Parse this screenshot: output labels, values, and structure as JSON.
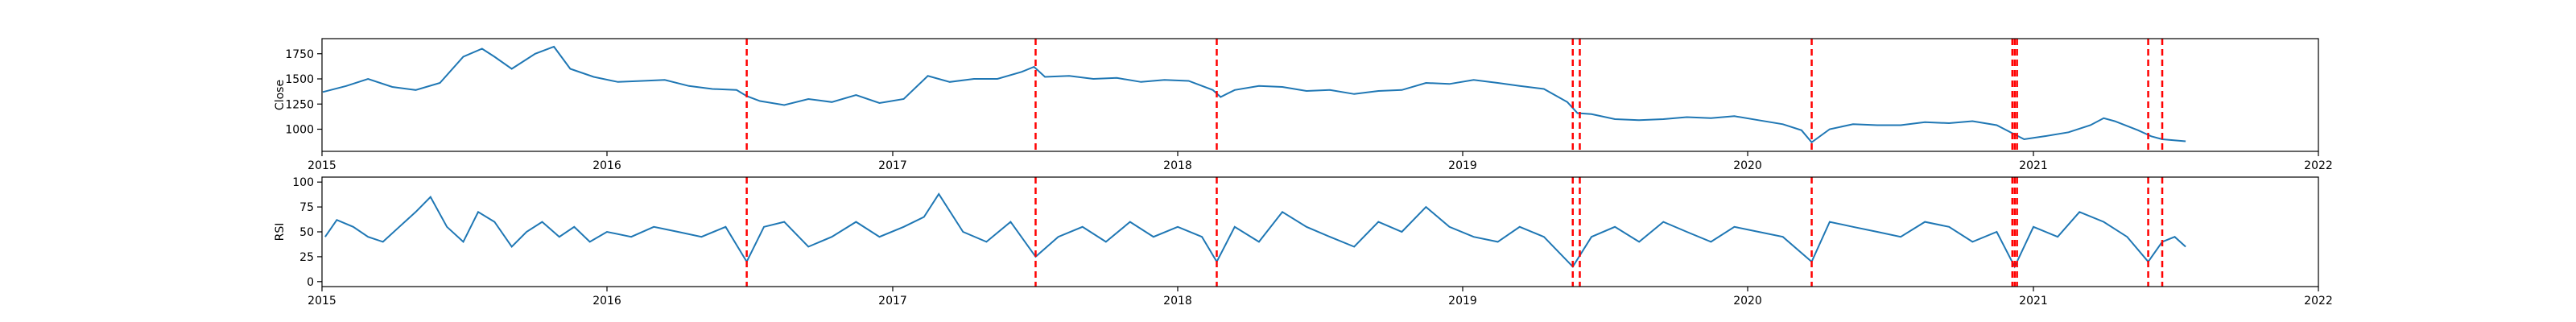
{
  "chart_data": [
    {
      "type": "line",
      "ylabel": "Close",
      "xlim": [
        "2015-01-01",
        "2022-01-01"
      ],
      "ylim": [
        780,
        1900
      ],
      "yticks": [
        1000,
        1250,
        1500,
        1750
      ],
      "xticks": [
        "2015",
        "2016",
        "2017",
        "2018",
        "2019",
        "2020",
        "2021",
        "2022"
      ],
      "line_color": "#1f77b4",
      "series": [
        {
          "x": [
            "2015-01-02",
            "2015-02-01",
            "2015-03-01",
            "2015-04-01",
            "2015-05-01",
            "2015-06-01",
            "2015-07-01",
            "2015-07-25",
            "2015-08-10",
            "2015-09-01",
            "2015-10-01",
            "2015-10-25",
            "2015-11-15",
            "2015-12-15",
            "2016-01-15",
            "2016-02-15",
            "2016-03-15",
            "2016-04-15",
            "2016-05-15",
            "2016-06-15",
            "2016-06-28",
            "2016-07-15",
            "2016-08-15",
            "2016-09-15",
            "2016-10-15",
            "2016-11-15",
            "2016-12-15",
            "2017-01-15",
            "2017-02-15",
            "2017-03-15",
            "2017-04-15",
            "2017-05-15",
            "2017-06-15",
            "2017-07-01",
            "2017-07-15",
            "2017-08-15",
            "2017-09-15",
            "2017-10-15",
            "2017-11-15",
            "2017-12-15",
            "2018-01-15",
            "2018-02-15",
            "2018-02-25",
            "2018-03-15",
            "2018-04-15",
            "2018-05-15",
            "2018-06-15",
            "2018-07-15",
            "2018-08-15",
            "2018-09-15",
            "2018-10-15",
            "2018-11-15",
            "2018-12-15",
            "2019-01-15",
            "2019-02-15",
            "2019-03-15",
            "2019-04-15",
            "2019-05-15",
            "2019-05-28",
            "2019-06-15",
            "2019-07-15",
            "2019-08-15",
            "2019-09-15",
            "2019-10-15",
            "2019-11-15",
            "2019-12-15",
            "2020-01-15",
            "2020-02-15",
            "2020-03-10",
            "2020-03-23",
            "2020-04-15",
            "2020-05-15",
            "2020-06-15",
            "2020-07-15",
            "2020-08-15",
            "2020-09-15",
            "2020-10-15",
            "2020-11-15",
            "2020-12-05",
            "2020-12-20",
            "2021-01-15",
            "2021-02-15",
            "2021-03-15",
            "2021-04-01",
            "2021-04-15",
            "2021-05-15",
            "2021-06-01",
            "2021-06-15",
            "2021-07-15"
          ],
          "values": [
            1370,
            1430,
            1500,
            1420,
            1390,
            1460,
            1720,
            1800,
            1720,
            1600,
            1750,
            1820,
            1600,
            1520,
            1470,
            1480,
            1490,
            1430,
            1400,
            1390,
            1330,
            1280,
            1240,
            1300,
            1270,
            1340,
            1260,
            1300,
            1530,
            1470,
            1500,
            1500,
            1570,
            1620,
            1520,
            1530,
            1500,
            1510,
            1470,
            1490,
            1480,
            1390,
            1320,
            1390,
            1430,
            1420,
            1380,
            1390,
            1350,
            1380,
            1390,
            1460,
            1450,
            1490,
            1460,
            1430,
            1400,
            1270,
            1160,
            1150,
            1100,
            1090,
            1100,
            1120,
            1110,
            1130,
            1090,
            1050,
            990,
            870,
            1000,
            1050,
            1040,
            1040,
            1070,
            1060,
            1080,
            1040,
            960,
            900,
            930,
            970,
            1040,
            1110,
            1080,
            990,
            930,
            900,
            880
          ]
        }
      ],
      "vlines": [
        "2016-06-28",
        "2017-07-03",
        "2018-02-20",
        "2019-05-22",
        "2019-05-31",
        "2020-03-23",
        "2020-12-05",
        "2020-12-08",
        "2020-12-11",
        "2021-05-28",
        "2021-06-15"
      ],
      "vline_color": "#ff0000"
    },
    {
      "type": "line",
      "ylabel": "RSI",
      "xlim": [
        "2015-01-01",
        "2022-01-01"
      ],
      "ylim": [
        -5,
        105
      ],
      "yticks": [
        0,
        25,
        50,
        75,
        100
      ],
      "xticks": [
        "2015",
        "2016",
        "2017",
        "2018",
        "2019",
        "2020",
        "2021",
        "2022"
      ],
      "line_color": "#1f77b4",
      "series": [
        {
          "x": [
            "2015-01-05",
            "2015-01-20",
            "2015-02-10",
            "2015-03-01",
            "2015-03-20",
            "2015-04-10",
            "2015-05-01",
            "2015-05-20",
            "2015-06-10",
            "2015-07-01",
            "2015-07-20",
            "2015-08-10",
            "2015-09-01",
            "2015-09-20",
            "2015-10-10",
            "2015-11-01",
            "2015-11-20",
            "2015-12-10",
            "2016-01-01",
            "2016-02-01",
            "2016-03-01",
            "2016-04-01",
            "2016-05-01",
            "2016-06-01",
            "2016-06-28",
            "2016-07-20",
            "2016-08-15",
            "2016-09-15",
            "2016-10-15",
            "2016-11-15",
            "2016-12-15",
            "2017-01-15",
            "2017-02-10",
            "2017-03-01",
            "2017-04-01",
            "2017-05-01",
            "2017-06-01",
            "2017-07-03",
            "2017-08-01",
            "2017-09-01",
            "2017-10-01",
            "2017-11-01",
            "2017-12-01",
            "2018-01-01",
            "2018-02-01",
            "2018-02-20",
            "2018-03-15",
            "2018-04-15",
            "2018-05-15",
            "2018-06-15",
            "2018-07-15",
            "2018-08-15",
            "2018-09-15",
            "2018-10-15",
            "2018-11-15",
            "2018-12-15",
            "2019-01-15",
            "2019-02-15",
            "2019-03-15",
            "2019-04-15",
            "2019-05-22",
            "2019-06-15",
            "2019-07-15",
            "2019-08-15",
            "2019-09-15",
            "2019-10-15",
            "2019-11-15",
            "2019-12-15",
            "2020-01-15",
            "2020-02-15",
            "2020-03-23",
            "2020-04-15",
            "2020-05-15",
            "2020-06-15",
            "2020-07-15",
            "2020-08-15",
            "2020-09-15",
            "2020-10-15",
            "2020-11-15",
            "2020-12-08",
            "2021-01-01",
            "2021-02-01",
            "2021-03-01",
            "2021-04-01",
            "2021-05-01",
            "2021-05-28",
            "2021-06-15",
            "2021-07-01",
            "2021-07-15"
          ],
          "values": [
            45,
            62,
            55,
            45,
            40,
            55,
            70,
            85,
            55,
            40,
            70,
            60,
            35,
            50,
            60,
            45,
            55,
            40,
            50,
            45,
            55,
            50,
            45,
            55,
            20,
            55,
            60,
            35,
            45,
            60,
            45,
            55,
            65,
            88,
            50,
            40,
            60,
            25,
            45,
            55,
            40,
            60,
            45,
            55,
            45,
            20,
            55,
            40,
            70,
            55,
            45,
            35,
            60,
            50,
            75,
            55,
            45,
            40,
            55,
            45,
            15,
            45,
            55,
            40,
            60,
            50,
            40,
            55,
            50,
            45,
            20,
            60,
            55,
            50,
            45,
            60,
            55,
            40,
            50,
            15,
            55,
            45,
            70,
            60,
            45,
            20,
            40,
            45,
            35
          ]
        }
      ],
      "vlines": [
        "2016-06-28",
        "2017-07-03",
        "2018-02-20",
        "2019-05-22",
        "2019-05-31",
        "2020-03-23",
        "2020-12-05",
        "2020-12-08",
        "2020-12-11",
        "2021-05-28",
        "2021-06-15"
      ],
      "vline_color": "#ff0000"
    }
  ]
}
